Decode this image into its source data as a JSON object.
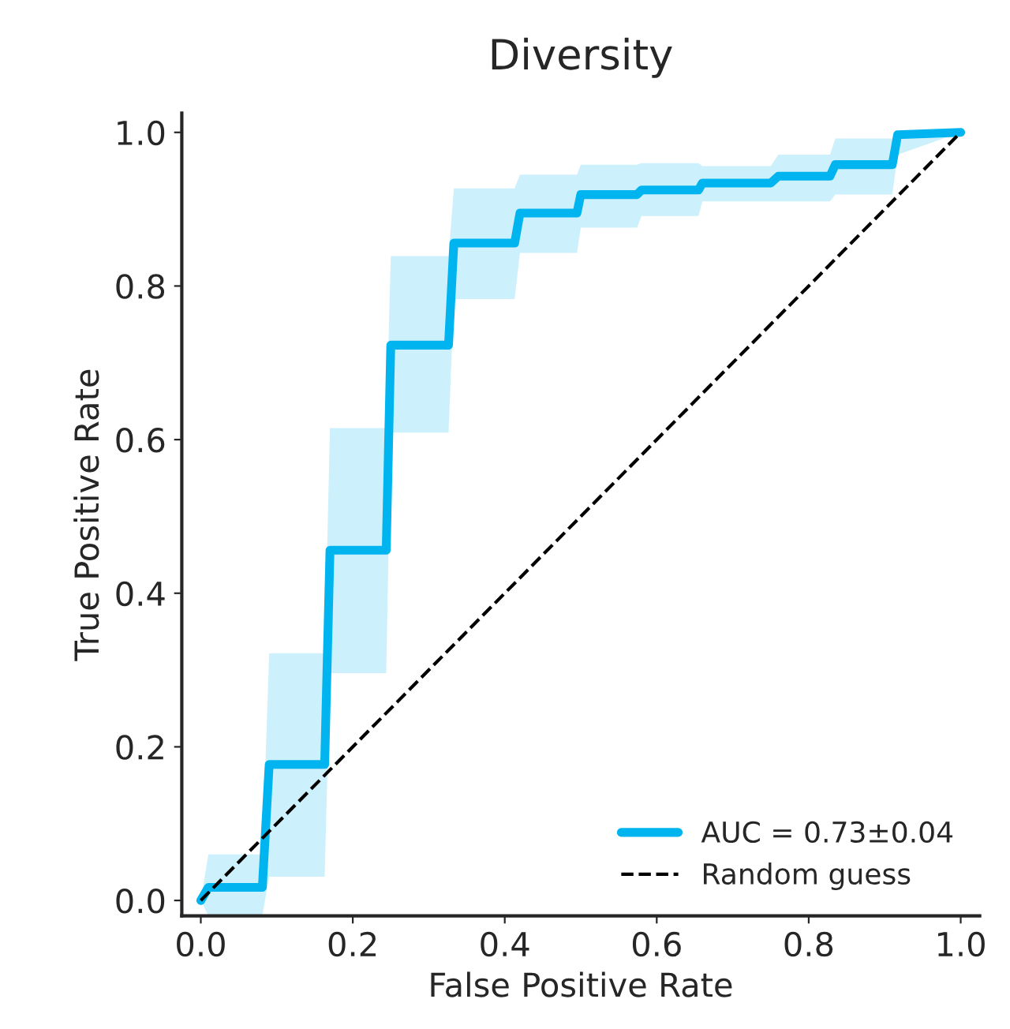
{
  "chart_data": {
    "type": "line",
    "title": "Diversity",
    "xlabel": "False Positive Rate",
    "ylabel": "True Positive Rate",
    "xlim": [
      -0.025,
      1.025
    ],
    "ylim": [
      -0.02,
      1.025
    ],
    "xticks": [
      {
        "value": 0,
        "label": "0.0"
      },
      {
        "value": 0.2,
        "label": "0.2"
      },
      {
        "value": 0.4,
        "label": "0.4"
      },
      {
        "value": 0.6,
        "label": "0.6"
      },
      {
        "value": 0.8,
        "label": "0.8"
      },
      {
        "value": 1,
        "label": "1.0"
      }
    ],
    "yticks": [
      {
        "value": 0,
        "label": "0.0"
      },
      {
        "value": 0.2,
        "label": "0.2"
      },
      {
        "value": 0.4,
        "label": "0.4"
      },
      {
        "value": 0.6,
        "label": "0.6"
      },
      {
        "value": 0.8,
        "label": "0.8"
      },
      {
        "value": 1,
        "label": "1.0"
      }
    ],
    "grid": false,
    "legend": "bottom right",
    "marker": "none",
    "series": [
      {
        "name": "AUC = 0.73±0.04",
        "color": "#00b5ef",
        "line_style": "solid",
        "x": [
          0,
          0.01,
          0.081,
          0.09,
          0.163,
          0.17,
          0.244,
          0.25,
          0.326,
          0.333,
          0.413,
          0.42,
          0.495,
          0.5,
          0.574,
          0.58,
          0.655,
          0.66,
          0.75,
          0.76,
          0.828,
          0.835,
          0.91,
          0.917,
          1.0
        ],
        "values": [
          0,
          0.017,
          0.017,
          0.177,
          0.177,
          0.456,
          0.456,
          0.723,
          0.723,
          0.856,
          0.856,
          0.895,
          0.895,
          0.919,
          0.919,
          0.925,
          0.925,
          0.934,
          0.934,
          0.943,
          0.943,
          0.958,
          0.958,
          0.997,
          1.0
        ],
        "lower": [
          0,
          -0.02,
          -0.02,
          0.031,
          0.031,
          0.296,
          0.296,
          0.609,
          0.609,
          0.783,
          0.783,
          0.843,
          0.843,
          0.876,
          0.876,
          0.891,
          0.891,
          0.91,
          0.91,
          0.91,
          0.91,
          0.919,
          0.919,
          0.971,
          1.0
        ],
        "upper": [
          0,
          0.06,
          0.06,
          0.322,
          0.322,
          0.615,
          0.615,
          0.839,
          0.839,
          0.927,
          0.927,
          0.945,
          0.945,
          0.958,
          0.958,
          0.96,
          0.96,
          0.956,
          0.956,
          0.971,
          0.971,
          0.992,
          0.992,
          1.0,
          1.0
        ]
      },
      {
        "name": "Random guess",
        "color": "#000000",
        "line_style": "dashed",
        "x": [
          0,
          1
        ],
        "values": [
          0,
          1
        ]
      }
    ]
  }
}
